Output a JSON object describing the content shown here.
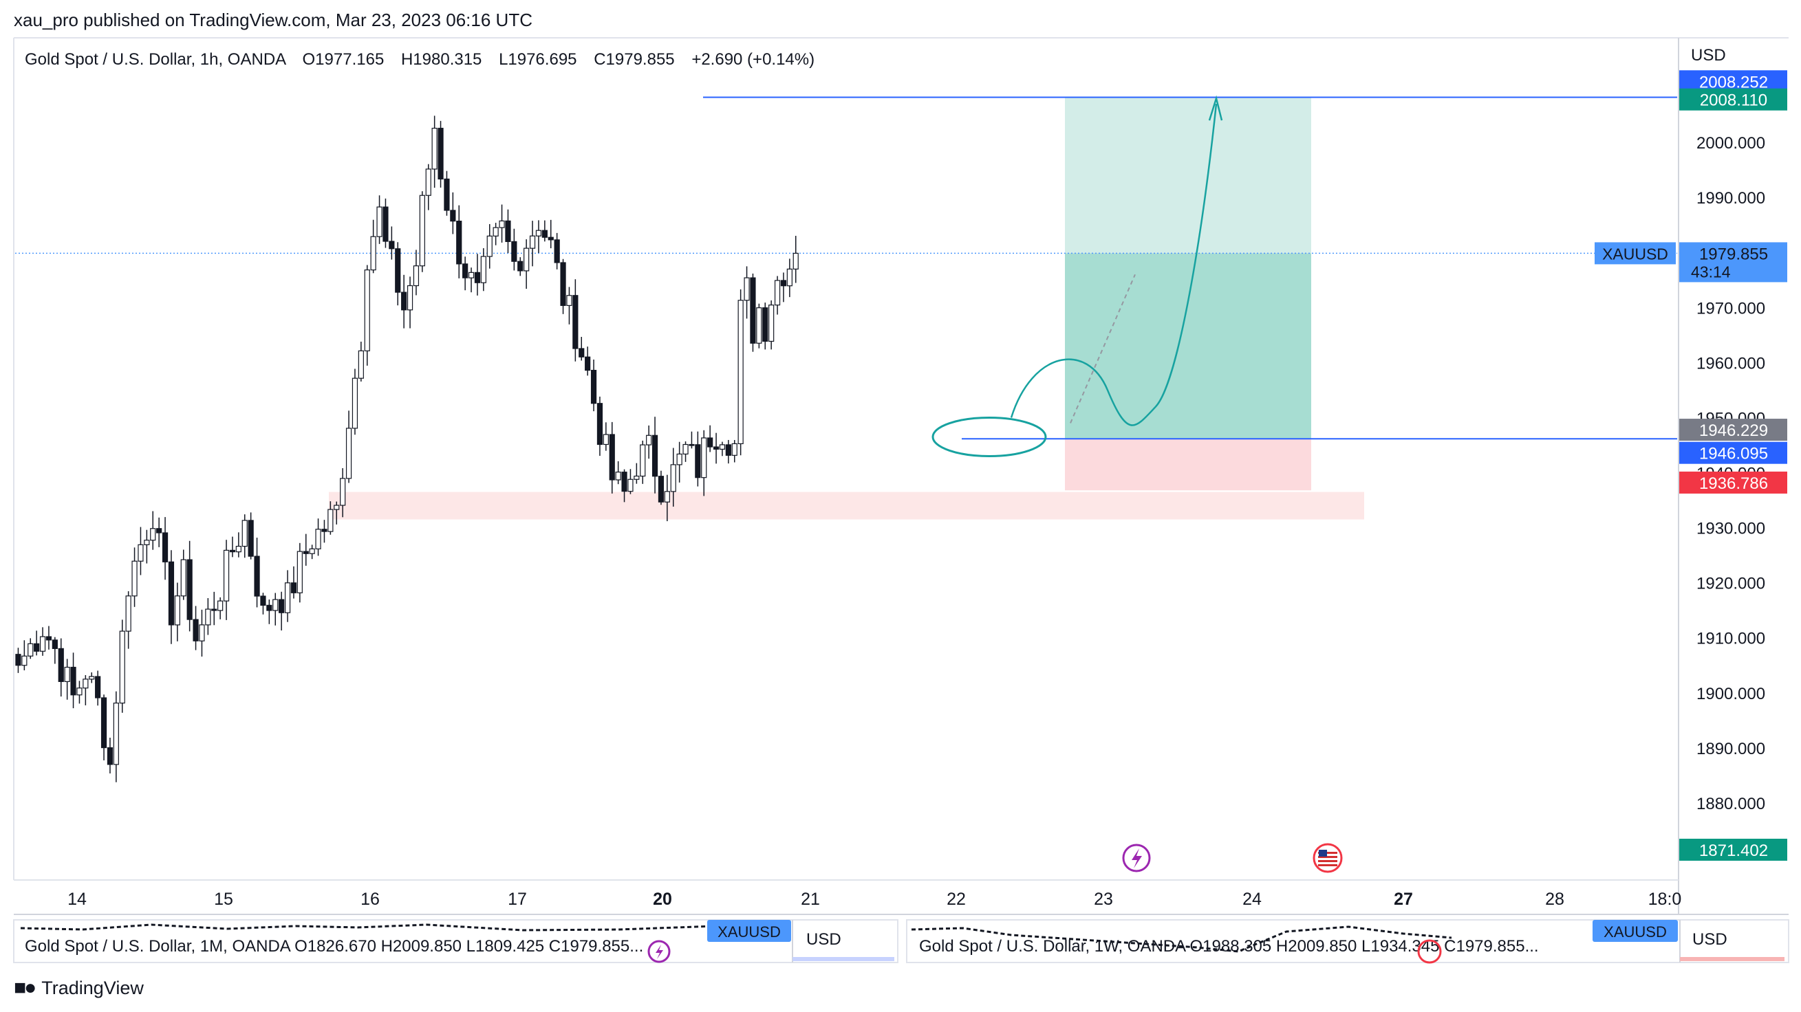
{
  "publish_line": "xau_pro published on TradingView.com, Mar 23, 2023 06:16 UTC",
  "header": {
    "symbol_desc": "Gold Spot / U.S. Dollar, 1h, OANDA",
    "open": "O1977.165",
    "high": "H1980.315",
    "low": "L1976.695",
    "close": "C1979.855",
    "change": "+2.690 (+0.14%)"
  },
  "currency_label": "USD",
  "colors": {
    "blue_line": "#2962ff",
    "profit_zone": "#a7ddd2",
    "loss_zone": "#fcdadd",
    "teal_drawing": "#17a2a0",
    "green_label": "#089981",
    "red_label": "#f23645",
    "grey_label": "#787b86",
    "last_price_label": "#4c97fc",
    "events_icon": "#9c27b0",
    "us_flag_circle": "#f23645"
  },
  "chart_data": {
    "type": "candlestick",
    "title": "Gold Spot / U.S. Dollar, 1h, OANDA",
    "y_range": [
      1866.0,
      2019.0
    ],
    "y_ticks": [
      2000.0,
      1990.0,
      1970.0,
      1960.0,
      1950.0,
      1940.0,
      1930.0,
      1920.0,
      1910.0,
      1900.0,
      1890.0,
      1880.0
    ],
    "y_tick_labels": [
      "2000.000",
      "1990.000",
      "1970.000",
      "1960.000",
      "1950.000",
      "1940.000",
      "1930.000",
      "1920.000",
      "1910.000",
      "1900.000",
      "1890.000",
      "1880.000"
    ],
    "x_tick_labels": [
      "14",
      "15",
      "16",
      "17",
      "20",
      "21",
      "22",
      "23",
      "24",
      "27",
      "28",
      "18:0"
    ],
    "bold_x_ticks": [
      "20",
      "27"
    ],
    "close_path": [
      [
        0,
        1905
      ],
      [
        4,
        1912
      ],
      [
        6,
        1908
      ],
      [
        9,
        1899
      ],
      [
        11,
        1904
      ],
      [
        13,
        1898
      ],
      [
        14,
        1893
      ],
      [
        15,
        1887
      ],
      [
        16,
        1900
      ],
      [
        18,
        1920
      ],
      [
        20,
        1927
      ],
      [
        22,
        1933
      ],
      [
        23,
        1926
      ],
      [
        25,
        1915
      ],
      [
        27,
        1921
      ],
      [
        29,
        1910
      ],
      [
        31,
        1914
      ],
      [
        33,
        1919
      ],
      [
        35,
        1926
      ],
      [
        37,
        1931
      ],
      [
        38,
        1926
      ],
      [
        40,
        1914
      ],
      [
        42,
        1918
      ],
      [
        44,
        1917
      ],
      [
        46,
        1923
      ],
      [
        48,
        1928
      ],
      [
        50,
        1930
      ],
      [
        52,
        1933
      ],
      [
        54,
        1950
      ],
      [
        56,
        1965
      ],
      [
        57,
        1980
      ],
      [
        59,
        1987
      ],
      [
        60,
        1981
      ],
      [
        62,
        1974
      ],
      [
        63,
        1970
      ],
      [
        65,
        1978
      ],
      [
        66,
        1988
      ],
      [
        68,
        2003
      ],
      [
        69,
        1995
      ],
      [
        71,
        1984
      ],
      [
        73,
        1977
      ],
      [
        75,
        1972
      ],
      [
        77,
        1980
      ],
      [
        79,
        1984
      ],
      [
        81,
        1978
      ],
      [
        83,
        1982
      ],
      [
        85,
        1986
      ],
      [
        87,
        1981
      ],
      [
        89,
        1972
      ],
      [
        91,
        1966
      ],
      [
        93,
        1958
      ],
      [
        95,
        1948
      ],
      [
        97,
        1939
      ],
      [
        99,
        1936
      ],
      [
        101,
        1942
      ],
      [
        103,
        1944
      ],
      [
        105,
        1938
      ],
      [
        107,
        1940
      ],
      [
        109,
        1944
      ],
      [
        111,
        1941
      ],
      [
        113,
        1947
      ],
      [
        115,
        1948
      ],
      [
        117,
        1945
      ],
      [
        118,
        1969
      ],
      [
        119,
        1973
      ],
      [
        120,
        1966
      ],
      [
        121,
        1970
      ],
      [
        122,
        1967
      ],
      [
        123,
        1972
      ],
      [
        124,
        1975
      ],
      [
        125,
        1977
      ],
      [
        126,
        1978
      ],
      [
        127,
        1979.855
      ]
    ],
    "bar_count": 128,
    "levels": [
      {
        "label": "2008.252",
        "value": 2008.252,
        "color": "blue"
      },
      {
        "label": "2008.110",
        "value": 2008.11,
        "color": "green"
      },
      {
        "label": "1979.855",
        "value": 1979.855,
        "color": "last"
      },
      {
        "label": "1946.229",
        "value": 1946.229,
        "color": "grey"
      },
      {
        "label": "1946.095",
        "value": 1946.095,
        "color": "blue"
      },
      {
        "label": "1936.786",
        "value": 1936.786,
        "color": "red"
      },
      {
        "label": "1871.402",
        "value": 1871.402,
        "color": "green"
      }
    ],
    "last_price_symbol": "XAUUSD",
    "countdown": "43:14",
    "long_position": {
      "entry": 1946.1,
      "target": 2008.11,
      "stop": 1936.786
    },
    "support_zone": [
      1931.5,
      1936.5
    ],
    "grid": false,
    "legend": "none"
  },
  "mini_charts": [
    {
      "legend": "Gold Spot / U.S. Dollar, 1M, OANDA  O1826.670  H2009.850  L1809.425  C1979.855...",
      "symbol": "XAUUSD",
      "currency": "USD"
    },
    {
      "legend": "Gold Spot / U.S. Dollar, 1W, OANDA  O1988.305  H2009.850  L1934.345  C1979.855...",
      "symbol": "XAUUSD",
      "currency": "USD"
    }
  ],
  "brand": "TradingView"
}
